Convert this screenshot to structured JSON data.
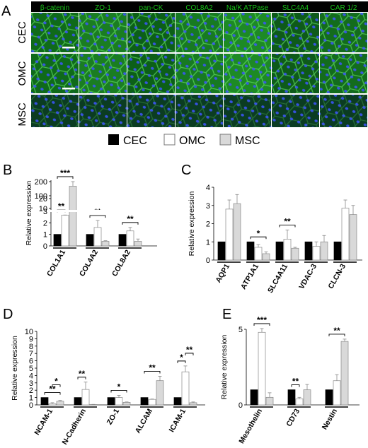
{
  "figure": {
    "panel_letters": [
      "A",
      "B",
      "C",
      "D",
      "E"
    ],
    "microscopy": {
      "stains": [
        "β-catenin",
        "ZO-1",
        "pan-CK",
        "COL8A2",
        "Na/K ATPase",
        "SLC4A4",
        "CAR 1/2"
      ],
      "rows": [
        "CEC",
        "OMC",
        "MSC"
      ],
      "stain_color": "#18c418",
      "nuclei_color": "#2b3fd6"
    },
    "legend": {
      "items": [
        {
          "label": "CEC",
          "fill": "#000000"
        },
        {
          "label": "OMC",
          "fill": "#ffffff"
        },
        {
          "label": "MSC",
          "fill": "#d9d9d9"
        }
      ]
    }
  },
  "chart_data": [
    {
      "panel": "B",
      "type": "bar",
      "ylabel": "Relative expression",
      "categories": [
        "COL1A1",
        "COL4A2",
        "COL8A2"
      ],
      "axis": "broken",
      "ticks_low": [
        "0",
        "1",
        "2",
        "3"
      ],
      "ticks_high": [
        "10",
        "20",
        "100",
        "200"
      ],
      "series": [
        {
          "name": "CEC",
          "values": [
            1,
            1,
            1
          ],
          "errors": [
            0,
            0,
            0
          ]
        },
        {
          "name": "OMC",
          "values": [
            3.2,
            1.6,
            1.3
          ],
          "errors": [
            0.2,
            0.6,
            0.3
          ]
        },
        {
          "name": "MSC",
          "values": [
            160,
            0.4,
            0.4
          ],
          "errors": [
            40,
            0.05,
            0.2
          ]
        }
      ],
      "significance": [
        {
          "text": "**",
          "cat": 0,
          "from": 0,
          "to": 1
        },
        {
          "text": "***",
          "cat": 0,
          "from": 0,
          "to": 2
        },
        {
          "text": "**",
          "cat": 1,
          "from": 0,
          "to": 2
        },
        {
          "text": "**",
          "cat": 2,
          "from": 0,
          "to": 2
        }
      ]
    },
    {
      "panel": "C",
      "type": "bar",
      "ylabel": "Relative expression",
      "categories": [
        "AQP1",
        "ATP1A1",
        "SLC4A11",
        "VDAC-3",
        "CLCN-3"
      ],
      "ylim": [
        0,
        4
      ],
      "yticks": [
        0,
        1,
        2,
        3,
        4
      ],
      "series": [
        {
          "name": "CEC",
          "values": [
            1,
            1,
            1,
            1,
            1
          ],
          "errors": [
            0,
            0,
            0,
            0,
            0
          ]
        },
        {
          "name": "OMC",
          "values": [
            2.8,
            0.7,
            1.15,
            0.75,
            2.85
          ],
          "errors": [
            0.5,
            0.15,
            0.5,
            0.25,
            0.45
          ]
        },
        {
          "name": "MSC",
          "values": [
            3.1,
            0.35,
            0.65,
            1.0,
            2.5
          ],
          "errors": [
            0.5,
            0.1,
            0.05,
            0.35,
            0.5
          ]
        }
      ],
      "significance": [
        {
          "text": "*",
          "cat": 1,
          "from": 0,
          "to": 2
        },
        {
          "text": "**",
          "cat": 2,
          "from": 0,
          "to": 2
        }
      ]
    },
    {
      "panel": "D",
      "type": "bar",
      "ylabel": "Relative expression",
      "categories": [
        "NCAM-1",
        "N-Cadherin",
        "ZO-1",
        "ALCAM",
        "ICAM-1"
      ],
      "ylim": [
        0,
        10
      ],
      "yticks": [
        0,
        1,
        2,
        3,
        4,
        5,
        6,
        7,
        8,
        9,
        10
      ],
      "series": [
        {
          "name": "CEC",
          "values": [
            1,
            1,
            1,
            1,
            1
          ],
          "errors": [
            0,
            0,
            0,
            0,
            0
          ]
        },
        {
          "name": "OMC",
          "values": [
            0.15,
            2.1,
            1.0,
            0.75,
            4.5
          ],
          "errors": [
            0.15,
            1.0,
            0.3,
            0.05,
            0.8
          ]
        },
        {
          "name": "MSC",
          "values": [
            0.5,
            0.05,
            0.35,
            3.3,
            0.3
          ],
          "errors": [
            0.1,
            0.02,
            0.05,
            0.6,
            0.1
          ]
        }
      ],
      "significance": [
        {
          "text": "**",
          "cat": 0,
          "from": 0,
          "to": 2
        },
        {
          "text": "*",
          "cat": 0,
          "from": 1,
          "to": 2
        },
        {
          "text": "**",
          "cat": 1,
          "from": 0,
          "to": 1
        },
        {
          "text": "*",
          "cat": 2,
          "from": 0,
          "to": 2
        },
        {
          "text": "**",
          "cat": 3,
          "from": 0,
          "to": 2
        },
        {
          "text": "*",
          "cat": 4,
          "from": 0,
          "to": 1
        },
        {
          "text": "**",
          "cat": 4,
          "from": 1,
          "to": 2
        }
      ]
    },
    {
      "panel": "E",
      "type": "bar",
      "ylabel": "Relative expression",
      "categories": [
        "Mesothelin",
        "CD73",
        "Nestin"
      ],
      "ylim": [
        0,
        5
      ],
      "yticks": [
        0,
        5
      ],
      "series": [
        {
          "name": "CEC",
          "values": [
            1,
            1,
            1
          ],
          "errors": [
            0,
            0,
            0
          ]
        },
        {
          "name": "OMC",
          "values": [
            4.8,
            0.4,
            1.6
          ],
          "errors": [
            0.25,
            0.1,
            0.4
          ]
        },
        {
          "name": "MSC",
          "values": [
            0.5,
            1.0,
            4.2
          ],
          "errors": [
            0.3,
            0.35,
            0.15
          ]
        }
      ],
      "significance": [
        {
          "text": "***",
          "cat": 0,
          "from": 0,
          "to": 2
        },
        {
          "text": "**",
          "cat": 1,
          "from": 0,
          "to": 1
        },
        {
          "text": "**",
          "cat": 2,
          "from": 0,
          "to": 2
        }
      ]
    }
  ]
}
